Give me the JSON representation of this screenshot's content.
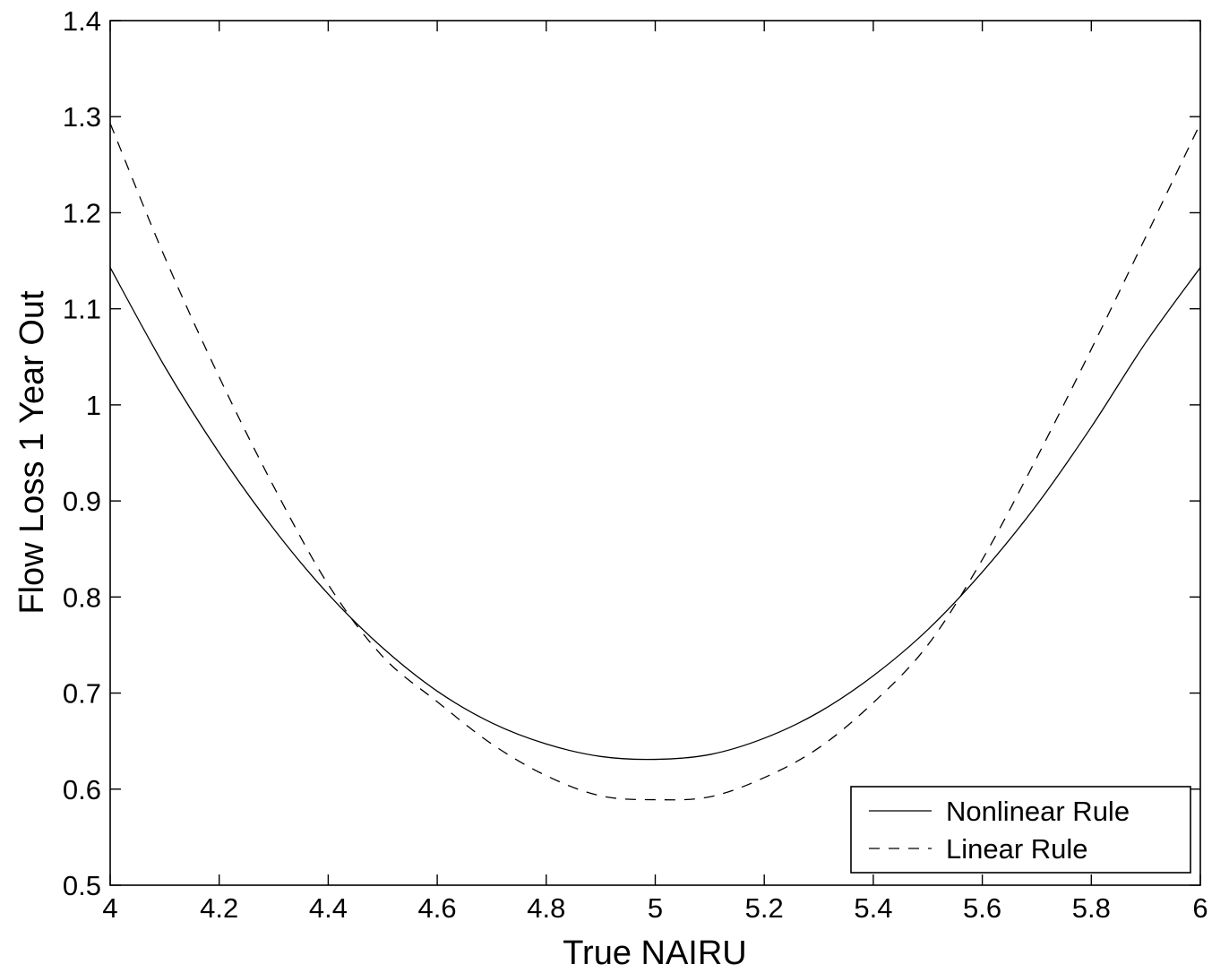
{
  "chart_data": {
    "type": "line",
    "title": "",
    "xlabel": "True NAIRU",
    "ylabel": "Flow Loss 1 Year Out",
    "xlim": [
      4,
      6
    ],
    "ylim": [
      0.5,
      1.4
    ],
    "x_ticks": [
      4,
      4.2,
      4.4,
      4.6,
      4.8,
      5,
      5.2,
      5.4,
      5.6,
      5.8,
      6
    ],
    "x_tick_labels": [
      "4",
      "4.2",
      "4.4",
      "4.6",
      "4.8",
      "5",
      "5.2",
      "5.4",
      "5.6",
      "5.8",
      "6"
    ],
    "y_ticks": [
      0.5,
      0.6,
      0.7,
      0.8,
      0.9,
      1,
      1.1,
      1.2,
      1.3,
      1.4
    ],
    "y_tick_labels": [
      "0.5",
      "0.6",
      "0.7",
      "0.8",
      "0.9",
      "1",
      "1.1",
      "1.2",
      "1.3",
      "1.4"
    ],
    "grid": false,
    "legend_position": "bottom-right",
    "x": [
      4.0,
      4.1,
      4.2,
      4.3,
      4.4,
      4.5,
      4.6,
      4.7,
      4.8,
      4.9,
      5.0,
      5.1,
      5.2,
      5.3,
      5.4,
      5.5,
      5.6,
      5.7,
      5.8,
      5.9,
      6.0
    ],
    "series": [
      {
        "name": "Nonlinear Rule",
        "style": "solid",
        "color": "#000000",
        "values": [
          1.143,
          1.04,
          0.95,
          0.871,
          0.803,
          0.747,
          0.702,
          0.669,
          0.647,
          0.634,
          0.631,
          0.636,
          0.653,
          0.68,
          0.718,
          0.766,
          0.826,
          0.896,
          0.977,
          1.065,
          1.143
        ]
      },
      {
        "name": "Linear Rule",
        "style": "dashed",
        "color": "#000000",
        "values": [
          1.293,
          1.154,
          1.029,
          0.915,
          0.813,
          0.738,
          0.691,
          0.647,
          0.614,
          0.593,
          0.589,
          0.592,
          0.612,
          0.643,
          0.69,
          0.75,
          0.839,
          0.945,
          1.058,
          1.175,
          1.293
        ]
      }
    ]
  }
}
